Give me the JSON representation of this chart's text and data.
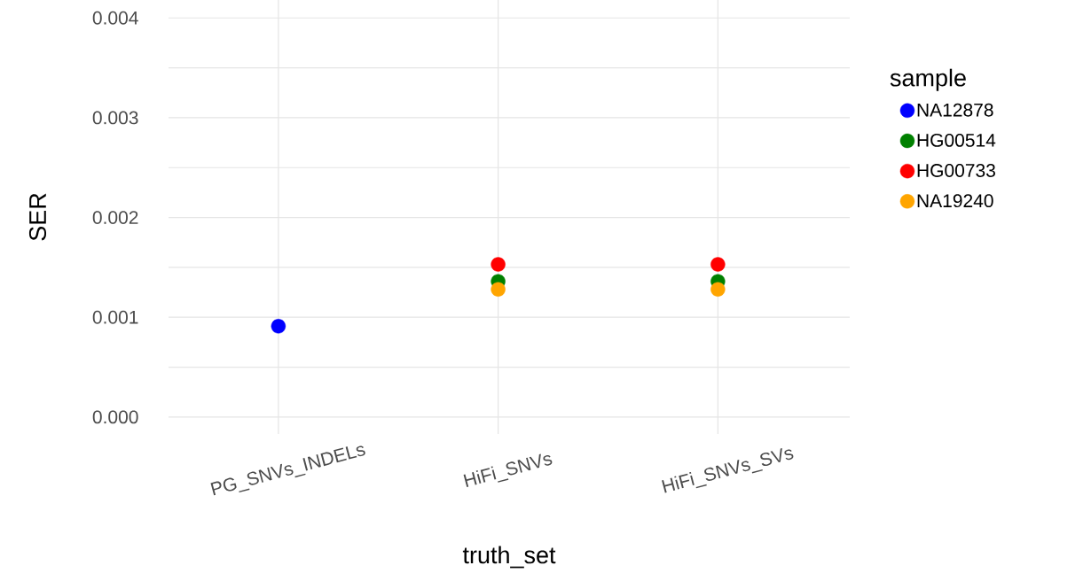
{
  "chart_data": {
    "type": "scatter",
    "xlabel": "truth_set",
    "ylabel": "SER",
    "legend_title": "sample",
    "categories": [
      "PG_SNVs_INDELs",
      "HiFi_SNVs",
      "HiFi_SNVs_SVs"
    ],
    "series": [
      {
        "name": "NA12878",
        "color": "#0000ff",
        "values": [
          0.00091,
          null,
          null
        ]
      },
      {
        "name": "HG00514",
        "color": "#008000",
        "values": [
          null,
          0.00136,
          0.00136
        ]
      },
      {
        "name": "HG00733",
        "color": "#ff0000",
        "values": [
          null,
          0.00153,
          0.00153
        ]
      },
      {
        "name": "NA19240",
        "color": "#ffa500",
        "values": [
          null,
          0.00128,
          0.00128
        ]
      }
    ],
    "ylim": [
      -0.00017,
      0.00418
    ],
    "yticks": [
      {
        "value": 0,
        "label": "0.000"
      },
      {
        "value": 0.0005,
        "label": null
      },
      {
        "value": 0.001,
        "label": "0.001"
      },
      {
        "value": 0.0015,
        "label": null
      },
      {
        "value": 0.002,
        "label": "0.002"
      },
      {
        "value": 0.0025,
        "label": null
      },
      {
        "value": 0.003,
        "label": "0.003"
      },
      {
        "value": 0.0035,
        "label": null
      },
      {
        "value": 0.004,
        "label": "0.004"
      }
    ],
    "grid": true,
    "legend": "right",
    "marker": "circle"
  }
}
